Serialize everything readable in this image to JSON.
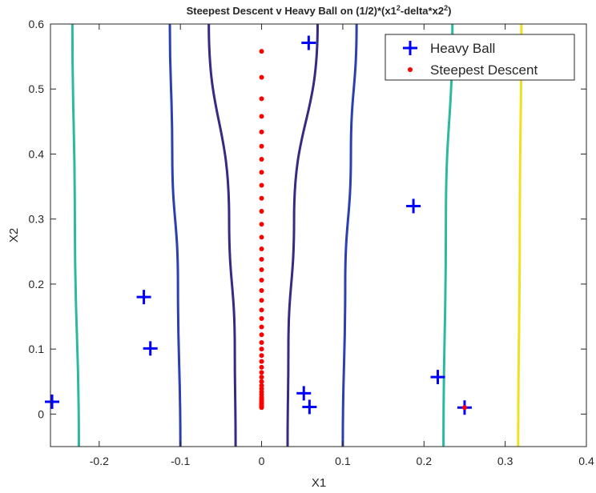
{
  "chart_data": {
    "type": "scatter",
    "title": {
      "text_before_sup1": "Steepest Descent v Heavy Ball on (1/2)*(x1",
      "sup1": "2",
      "text_mid": "-delta*x2",
      "sup2": "2",
      "text_after": ")"
    },
    "xlabel": "X1",
    "ylabel": "X2",
    "xlim": [
      -0.26,
      0.4
    ],
    "ylim": [
      -0.05,
      0.6
    ],
    "xticks": [
      -0.2,
      -0.1,
      0,
      0.1,
      0.2,
      0.3,
      0.4
    ],
    "xtick_labels": [
      "-0.2",
      "-0.1",
      "0",
      "0.1",
      "0.2",
      "0.3",
      "0.4"
    ],
    "yticks": [
      0,
      0.1,
      0.2,
      0.3,
      0.4,
      0.5,
      0.6
    ],
    "ytick_labels": [
      "0",
      "0.1",
      "0.2",
      "0.3",
      "0.4",
      "0.5",
      "0.6"
    ],
    "grid": false,
    "legend_position": "top-right",
    "series": [
      {
        "name": "Heavy Ball",
        "marker": "plus",
        "color": "#0000ff",
        "x": [
          0.25,
          0.217,
          0.187,
          0.059,
          0.052,
          0.058,
          -0.137,
          -0.145,
          -0.258
        ],
        "y": [
          0.01,
          0.057,
          0.32,
          0.011,
          0.032,
          0.571,
          0.101,
          0.18,
          0.019
        ]
      },
      {
        "name": "Steepest Descent",
        "marker": "dot",
        "color": "#ff0000",
        "x": [
          0.25,
          0.0,
          0.0,
          0.0,
          0.0,
          0.0,
          0.0,
          0.0,
          0.0,
          0.0,
          0.0,
          0.0,
          0.0,
          0.0,
          0.0,
          0.0,
          0.0,
          0.0,
          0.0,
          0.0,
          0.0,
          0.0,
          0.0,
          0.0,
          0.0,
          0.0,
          0.0,
          0.0,
          0.0,
          0.0,
          0.0,
          0.0,
          0.0,
          0.0,
          0.0,
          0.0,
          0.0,
          0.0,
          0.0,
          0.0,
          0.0,
          0.0,
          0.0,
          0.0,
          0.0,
          0.0,
          0.0
        ],
        "y": [
          0.01,
          0.558,
          0.518,
          0.485,
          0.458,
          0.434,
          0.412,
          0.392,
          0.372,
          0.352,
          0.332,
          0.312,
          0.292,
          0.272,
          0.254,
          0.238,
          0.222,
          0.206,
          0.19,
          0.175,
          0.16,
          0.147,
          0.134,
          0.122,
          0.11,
          0.1,
          0.09,
          0.081,
          0.072,
          0.064,
          0.057,
          0.05,
          0.044,
          0.039,
          0.034,
          0.03,
          0.026,
          0.023,
          0.02,
          0.018,
          0.016,
          0.014,
          0.013,
          0.012,
          0.011,
          0.011,
          0.01
        ]
      }
    ],
    "contours": [
      {
        "color": "#2db8a0",
        "points": [
          [
            -0.225,
            -0.05
          ],
          [
            -0.23,
            0.3
          ],
          [
            -0.233,
            0.6
          ]
        ]
      },
      {
        "color": "#2c3fb0",
        "points": [
          [
            -0.1,
            -0.05
          ],
          [
            -0.103,
            0.2
          ],
          [
            -0.11,
            0.4
          ],
          [
            -0.113,
            0.6
          ]
        ]
      },
      {
        "color": "#362a82",
        "points": [
          [
            -0.032,
            -0.05
          ],
          [
            -0.033,
            0.1
          ],
          [
            -0.04,
            0.3
          ],
          [
            -0.065,
            0.6
          ]
        ]
      },
      {
        "color": "#362a82",
        "points": [
          [
            0.032,
            -0.05
          ],
          [
            0.033,
            0.1
          ],
          [
            0.04,
            0.3
          ],
          [
            0.069,
            0.6
          ]
        ]
      },
      {
        "color": "#2c3fb0",
        "points": [
          [
            0.1,
            -0.05
          ],
          [
            0.103,
            0.2
          ],
          [
            0.11,
            0.4
          ],
          [
            0.117,
            0.6
          ]
        ]
      },
      {
        "color": "#2db8a0",
        "points": [
          [
            0.224,
            -0.05
          ],
          [
            0.227,
            0.3
          ],
          [
            0.235,
            0.6
          ]
        ]
      },
      {
        "color": "#f0e020",
        "points": [
          [
            0.316,
            -0.05
          ],
          [
            0.318,
            0.3
          ],
          [
            0.32,
            0.6
          ]
        ]
      }
    ]
  }
}
